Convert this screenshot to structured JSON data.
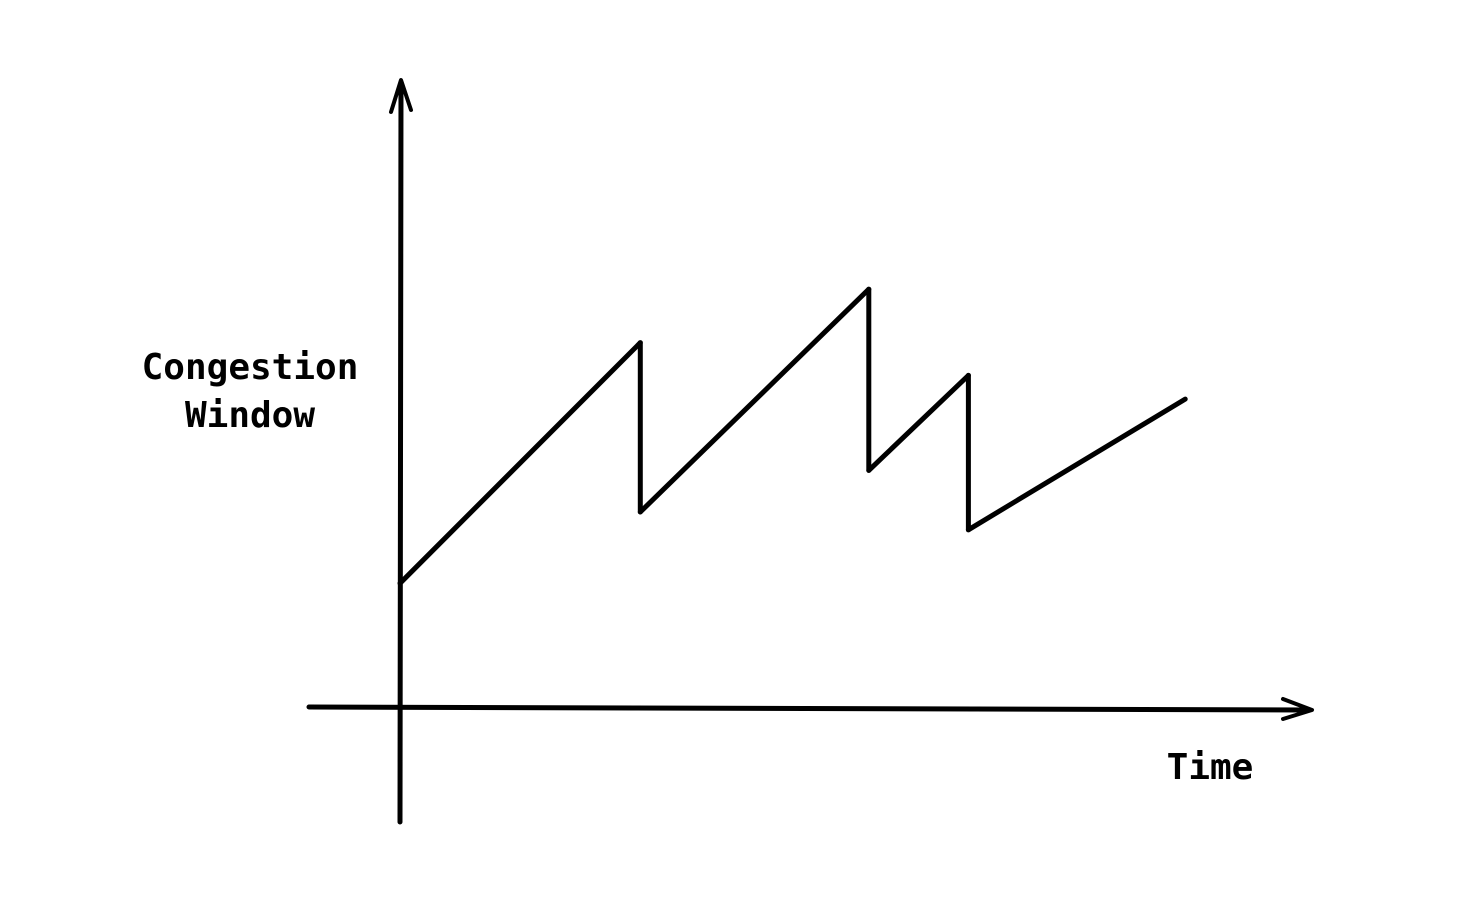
{
  "chart_data": {
    "type": "line",
    "title": "",
    "xlabel": "Time",
    "ylabel": "Congestion\nWindow",
    "grid": false,
    "legend": "none",
    "series": [
      {
        "points": [
          {
            "x": 0.0,
            "y": 0.42
          },
          {
            "x": 8.2,
            "y": 1.23
          },
          {
            "x": 8.2,
            "y": 0.66
          },
          {
            "x": 16.0,
            "y": 1.41
          },
          {
            "x": 16.0,
            "y": 0.8
          },
          {
            "x": 19.4,
            "y": 1.12
          },
          {
            "x": 19.4,
            "y": 0.6
          },
          {
            "x": 26.8,
            "y": 1.04
          }
        ]
      }
    ],
    "axis_color": "#000000",
    "line_color": "#000000"
  }
}
